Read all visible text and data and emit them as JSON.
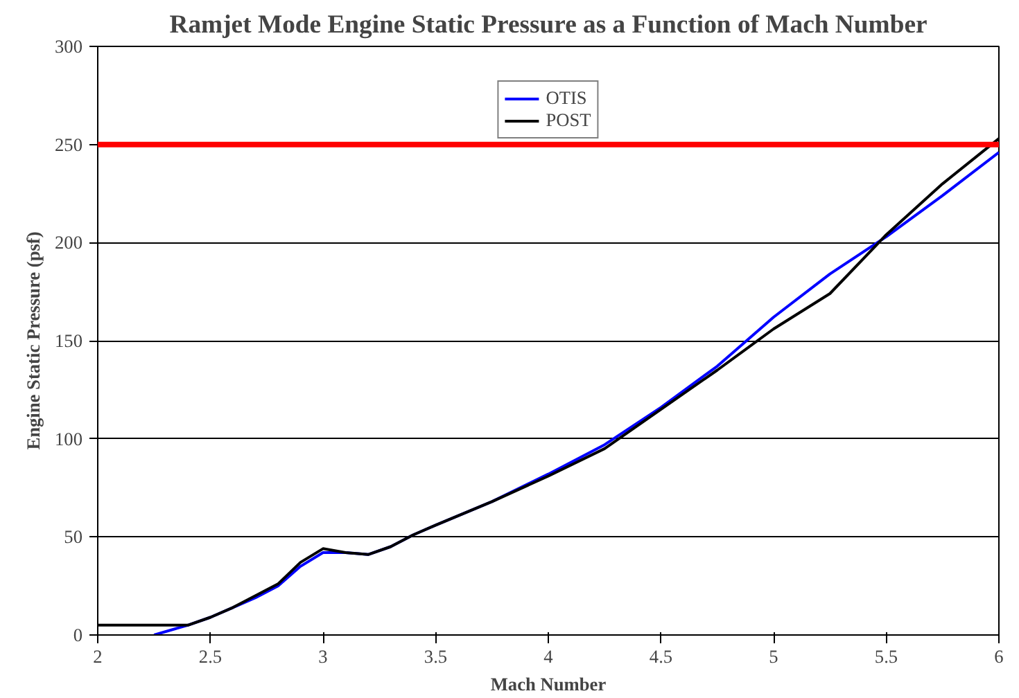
{
  "chart_data": {
    "type": "line",
    "title": "Ramjet Mode Engine Static Pressure as a Function of Mach Number",
    "xlabel": "Mach Number",
    "ylabel": "Engine Static Pressure (psf)",
    "xlim": [
      2,
      6
    ],
    "ylim": [
      0,
      300
    ],
    "xticks": [
      2,
      2.5,
      3,
      3.5,
      4,
      4.5,
      5,
      5.5,
      6
    ],
    "yticks": [
      0,
      50,
      100,
      150,
      200,
      250,
      300
    ],
    "grid": "y",
    "legend": "top",
    "line_style": "solid",
    "marker": "none",
    "ref_lines": [
      {
        "axis": "y",
        "value": 250,
        "color": "#ff0000"
      }
    ],
    "series": [
      {
        "name": "OTIS",
        "color": "#0000ff",
        "x": [
          2.25,
          2.4,
          2.5,
          2.6,
          2.7,
          2.8,
          2.9,
          3.0,
          3.1,
          3.2,
          3.3,
          3.4,
          3.5,
          3.75,
          4.0,
          4.25,
          4.5,
          4.75,
          5.0,
          5.25,
          5.5,
          5.75,
          6.0
        ],
        "values": [
          0,
          5,
          9,
          14,
          19,
          25,
          35,
          42,
          42,
          41,
          45,
          51,
          56,
          68,
          82,
          97,
          116,
          137,
          162,
          184,
          203,
          224,
          246
        ]
      },
      {
        "name": "POST",
        "color": "#000000",
        "x": [
          2.0,
          2.4,
          2.5,
          2.6,
          2.7,
          2.8,
          2.9,
          3.0,
          3.1,
          3.2,
          3.3,
          3.4,
          3.5,
          3.75,
          4.0,
          4.25,
          4.5,
          4.75,
          5.0,
          5.25,
          5.5,
          5.75,
          6.0
        ],
        "values": [
          5,
          5,
          9,
          14,
          20,
          26,
          37,
          44,
          42,
          41,
          45,
          51,
          56,
          68,
          81,
          95,
          115,
          135,
          156,
          174,
          204,
          230,
          253
        ]
      }
    ]
  }
}
